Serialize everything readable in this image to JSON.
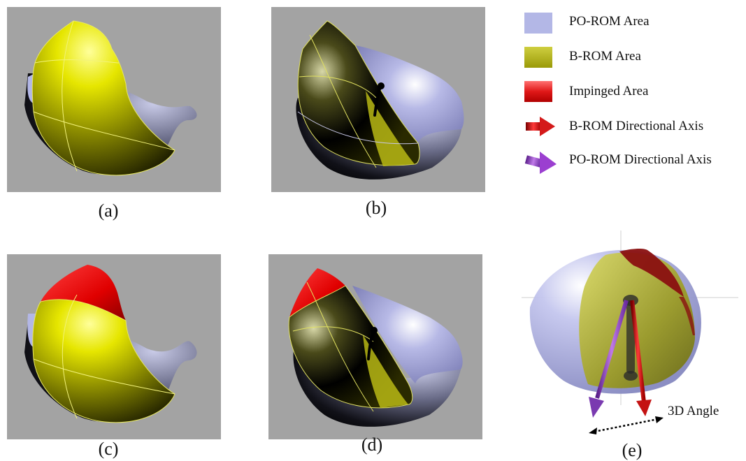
{
  "legend": [
    {
      "label": "PO-ROM Area",
      "swatch": "#b3b7e6"
    },
    {
      "label": "B-ROM Area",
      "swatch": "#b8b814"
    },
    {
      "label": "Impinged Area",
      "swatch": "#e01818"
    },
    {
      "label": "B-ROM Directional Axis",
      "swatch": "#c41212"
    },
    {
      "label": "PO-ROM Directional Axis",
      "swatch": "#9b3fd0"
    }
  ],
  "panels": [
    {
      "caption": "(a)"
    },
    {
      "caption": "(b)"
    },
    {
      "caption": "(c)"
    },
    {
      "caption": "(d)"
    },
    {
      "caption": "(e)"
    }
  ],
  "angle_label": "3D Angle"
}
